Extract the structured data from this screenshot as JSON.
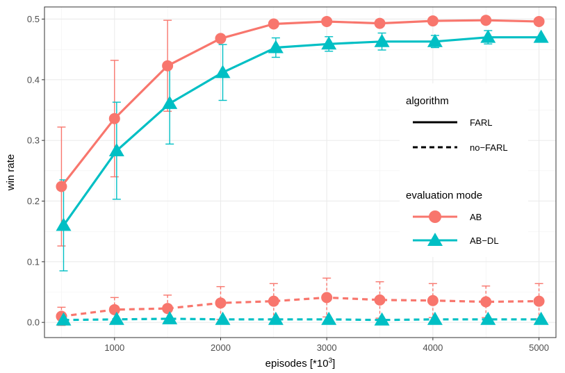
{
  "chart_data": {
    "type": "line",
    "xlabel": "episodes [*10",
    "xlabel_sup": "3",
    "xlabel_close": "]",
    "ylabel": "win rate",
    "xlim": [
      340,
      5160
    ],
    "ylim": [
      -0.025,
      0.52
    ],
    "x_ticks": [
      1000,
      2000,
      3000,
      4000,
      5000
    ],
    "x_tick_labels": [
      "1000",
      "2000",
      "3000",
      "4000",
      "5000"
    ],
    "y_ticks": [
      0.0,
      0.1,
      0.2,
      0.3,
      0.4,
      0.5
    ],
    "y_tick_labels": [
      "0.0",
      "0.1",
      "0.2",
      "0.3",
      "0.4",
      "0.5"
    ],
    "grid": true,
    "legend_position": "right-inside",
    "colors": {
      "AB": "#f8766d",
      "AB-DL": "#00bfc4"
    },
    "legends": {
      "algorithm": {
        "title": "algorithm",
        "entries": [
          "FARL",
          "no−FARL"
        ]
      },
      "mode": {
        "title": "evaluation mode",
        "entries": [
          "AB",
          "AB−DL"
        ]
      }
    },
    "series": [
      {
        "algorithm": "FARL",
        "mode": "AB",
        "marker": "circle",
        "linetype": "solid",
        "x": [
          500,
          1000,
          1500,
          2000,
          2500,
          3000,
          3500,
          4000,
          4500,
          5000
        ],
        "y": [
          0.224,
          0.336,
          0.423,
          0.468,
          0.492,
          0.496,
          0.493,
          0.497,
          0.498,
          0.496
        ],
        "err": [
          0.098,
          0.096,
          0.075,
          0.0,
          0.0,
          0.0,
          0.0,
          0.0,
          0.0,
          0.0
        ]
      },
      {
        "algorithm": "FARL",
        "mode": "AB-DL",
        "marker": "triangle",
        "linetype": "solid",
        "x": [
          520,
          1020,
          1520,
          2020,
          2520,
          3020,
          3520,
          4020,
          4520,
          5020
        ],
        "y": [
          0.16,
          0.283,
          0.361,
          0.412,
          0.453,
          0.459,
          0.463,
          0.463,
          0.47,
          0.47
        ],
        "err": [
          0.075,
          0.08,
          0.067,
          0.046,
          0.016,
          0.012,
          0.014,
          0.01,
          0.011,
          0.0
        ]
      },
      {
        "algorithm": "no-FARL",
        "mode": "AB",
        "marker": "circle",
        "linetype": "dashed",
        "x": [
          500,
          1000,
          1500,
          2000,
          2500,
          3000,
          3500,
          4000,
          4500,
          5000
        ],
        "y": [
          0.01,
          0.021,
          0.023,
          0.032,
          0.035,
          0.041,
          0.037,
          0.036,
          0.034,
          0.035
        ],
        "err": [
          0.015,
          0.02,
          0.022,
          0.027,
          0.029,
          0.032,
          0.03,
          0.028,
          0.026,
          0.029
        ]
      },
      {
        "algorithm": "no-FARL",
        "mode": "AB-DL",
        "marker": "triangle",
        "linetype": "dashed",
        "x": [
          520,
          1020,
          1520,
          2020,
          2520,
          3020,
          3520,
          4020,
          4520,
          5020
        ],
        "y": [
          0.004,
          0.005,
          0.006,
          0.005,
          0.005,
          0.005,
          0.004,
          0.005,
          0.005,
          0.005
        ],
        "err": [
          0.0,
          0.0,
          0.0,
          0.0,
          0.0,
          0.0,
          0.0,
          0.0,
          0.0,
          0.0
        ]
      }
    ]
  }
}
